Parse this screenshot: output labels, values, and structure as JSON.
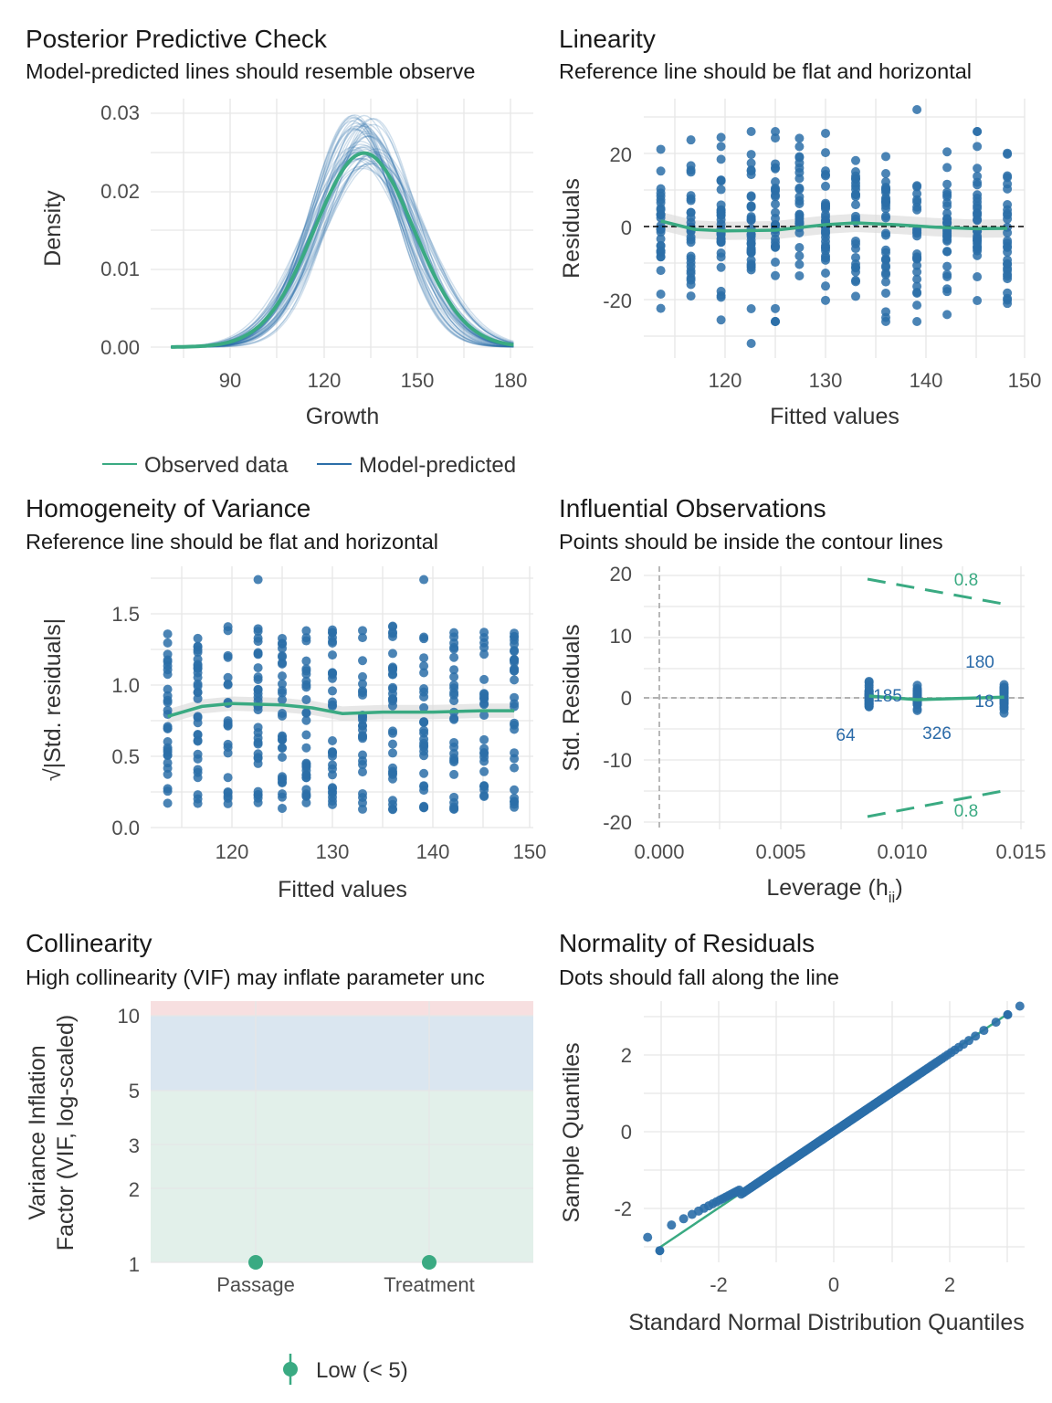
{
  "colors": {
    "point": "#2b6ea8",
    "observed": "#3aaa82",
    "predicted": "#2b6ea8",
    "grid": "#e6e6e6",
    "band_low": "#e2f0ea",
    "band_mod": "#dae6f0",
    "band_high": "#f7dfe0"
  },
  "panels": {
    "ppc": {
      "title": "Posterior Predictive Check",
      "subtitle": "Model-predicted lines should resemble observe",
      "xlabel": "Growth",
      "ylabel": "Density",
      "xticks": [
        "90",
        "120",
        "150",
        "180"
      ],
      "yticks": [
        "0.00",
        "0.01",
        "0.02",
        "0.03"
      ],
      "legend_observed": "Observed data",
      "legend_predicted": "Model-predicted "
    },
    "linearity": {
      "title": "Linearity",
      "subtitle": "Reference line should be flat and horizontal",
      "xlabel": "Fitted values",
      "ylabel": "Residuals",
      "xticks": [
        "120",
        "130",
        "140",
        "150"
      ],
      "yticks": [
        "-20",
        "0",
        "20"
      ]
    },
    "homogeneity": {
      "title": "Homogeneity of Variance",
      "subtitle": "Reference line should be flat and horizontal",
      "xlabel": "Fitted values",
      "ylabel": "√|Std. residuals|",
      "xticks": [
        "120",
        "130",
        "140",
        "150"
      ],
      "yticks": [
        "0.0",
        "0.5",
        "1.0",
        "1.5"
      ]
    },
    "influence": {
      "title": "Influential Observations",
      "subtitle": "Points should be inside the contour lines",
      "xlabel": "Leverage (h",
      "xlabel_sub": "ii",
      "xlabel_end": ")",
      "ylabel": "Std. Residuals",
      "xticks": [
        "0.000",
        "0.005",
        "0.010",
        "0.015"
      ],
      "yticks": [
        "-20",
        "-10",
        "0",
        "10",
        "20"
      ],
      "contour_label_top": "0.8",
      "contour_label_bottom": "0.8",
      "point_labels": [
        "185",
        "180",
        "18",
        "64",
        "326"
      ]
    },
    "collinearity": {
      "title": "Collinearity",
      "subtitle": "High collinearity (VIF) may inflate parameter unc",
      "ylabel_line1": "Variance Inflation",
      "ylabel_line2": "Factor (VIF, log-scaled)",
      "xticks": [
        "Passage",
        "Treatment"
      ],
      "yticks": [
        "1",
        "2",
        "3",
        "5",
        "10"
      ],
      "legend_low": "Low (< 5)"
    },
    "normality": {
      "title": "Normality of Residuals",
      "subtitle": "Dots should fall along the line",
      "xlabel": "Standard Normal Distribution Quantiles",
      "ylabel": "Sample Quantiles",
      "xticks": [
        "-2",
        "0",
        "2"
      ],
      "yticks": [
        "-2",
        "0",
        "2"
      ]
    }
  },
  "chart_data": [
    {
      "type": "line",
      "panel": "Posterior Predictive Check",
      "x_range": [
        71,
        181
      ],
      "ylim": [
        0,
        0.03
      ],
      "series": [
        {
          "name": "Observed data",
          "center": 133,
          "sd": 16,
          "peak": 0.025
        },
        {
          "name": "Model-predicted",
          "center_range": [
            129,
            137
          ],
          "peak_range": [
            0.023,
            0.03
          ]
        }
      ]
    },
    {
      "type": "scatter",
      "panel": "Linearity",
      "fitted_values": [
        113.6,
        116.6,
        119.6,
        122.6,
        125.0,
        127.4,
        130.0,
        133.0,
        136.0,
        139.1,
        142.1,
        145.1,
        148.1
      ],
      "residual_range": [
        -32,
        32
      ],
      "xlim": [
        112,
        150
      ],
      "ylim": [
        -35,
        35
      ],
      "smooth_line": [
        [
          113.6,
          1.5
        ],
        [
          117,
          -0.8
        ],
        [
          120,
          -1.2
        ],
        [
          125,
          -1.0
        ],
        [
          130,
          0.5
        ],
        [
          133,
          1.0
        ],
        [
          137,
          0.5
        ],
        [
          141,
          -0.2
        ],
        [
          145,
          -0.6
        ],
        [
          148.1,
          -0.5
        ]
      ]
    },
    {
      "type": "scatter",
      "panel": "Homogeneity of Variance",
      "fitted_values": [
        113.6,
        116.6,
        119.6,
        122.6,
        125.0,
        127.4,
        130.0,
        133.0,
        136.0,
        139.1,
        142.1,
        145.1,
        148.1
      ],
      "xlim": [
        112,
        150
      ],
      "ylim": [
        0,
        1.8
      ],
      "smooth_line": [
        [
          113.6,
          0.78
        ],
        [
          117,
          0.85
        ],
        [
          120,
          0.87
        ],
        [
          125,
          0.86
        ],
        [
          128,
          0.84
        ],
        [
          131,
          0.8
        ],
        [
          135,
          0.81
        ],
        [
          140,
          0.81
        ],
        [
          145,
          0.82
        ],
        [
          148.1,
          0.82
        ]
      ]
    },
    {
      "type": "scatter",
      "panel": "Influential Observations",
      "leverage_groups": [
        0.0087,
        0.0107,
        0.0143
      ],
      "xlim": [
        -0.0005,
        0.015
      ],
      "ylim": [
        -20,
        20
      ],
      "contour": {
        "label": "0.8",
        "upper": [
          [
            0.0087,
            19
          ],
          [
            0.0143,
            15
          ]
        ],
        "lower": [
          [
            0.0087,
            -19
          ],
          [
            0.0143,
            -15
          ]
        ]
      },
      "labels": [
        {
          "text": "185",
          "x": 0.0087,
          "y": 0
        },
        {
          "text": "180",
          "x": 0.0143,
          "y": 3
        },
        {
          "text": "18",
          "x": 0.0143,
          "y": -0.5
        },
        {
          "text": "64",
          "x": 0.0087,
          "y": -3
        },
        {
          "text": "326",
          "x": 0.0107,
          "y": -3
        }
      ]
    },
    {
      "type": "scatter",
      "panel": "Collinearity",
      "categories": [
        "Passage",
        "Treatment"
      ],
      "values": [
        1,
        1
      ],
      "ylim": [
        1,
        11
      ],
      "log_scale": true,
      "bands": [
        {
          "name": "Low (< 5)",
          "range": [
            1,
            5
          ]
        },
        {
          "range": [
            5,
            10
          ]
        },
        {
          "range": [
            10,
            11
          ]
        }
      ]
    },
    {
      "type": "scatter",
      "panel": "Normality of Residuals",
      "xlim": [
        -3.1,
        3.1
      ],
      "ylim": [
        -3.3,
        3.3
      ],
      "reference_line": [
        [
          -3,
          -3.1
        ],
        [
          3,
          3.05
        ]
      ],
      "points_range": [
        -3,
        3
      ]
    }
  ]
}
